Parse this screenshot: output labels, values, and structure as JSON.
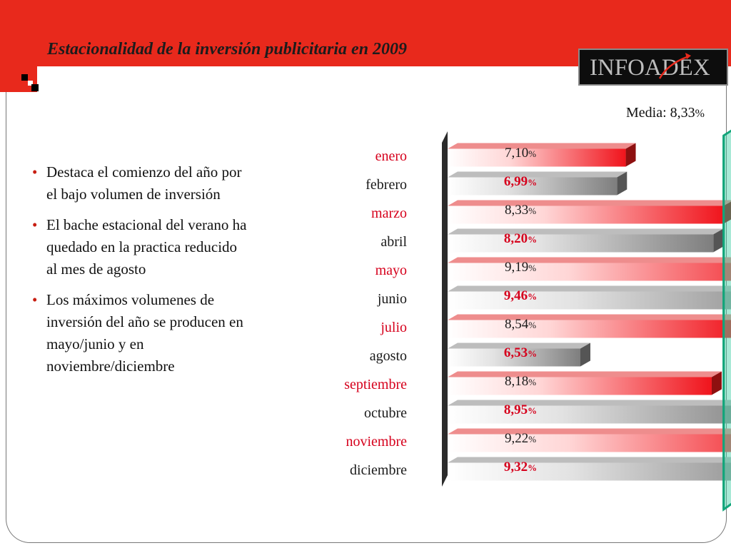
{
  "header": {
    "title": "Estacionalidad de la inversión publicitaria en 2009"
  },
  "logo": {
    "text": "INFOADEX",
    "icon": "infoadex-logo"
  },
  "bullets": [
    "Destaca el comienzo del año por el bajo volumen de inversión",
    "El bache estacional del verano ha quedado en la practica reducido al mes de agosto",
    "Los máximos volumenes de inversión del año se producen en mayo/junio y en noviembre/diciembre"
  ],
  "colors": {
    "brand_red": "#e8291c",
    "label_red": "#d6001c",
    "bar_red": "#f0141c",
    "bar_gray": "#8a8a8a",
    "mean_green": "#3fcfa3"
  },
  "chart_data": {
    "type": "bar",
    "orientation": "horizontal",
    "categories": [
      "enero",
      "febrero",
      "marzo",
      "abril",
      "mayo",
      "junio",
      "julio",
      "agosto",
      "septiembre",
      "octubre",
      "noviembre",
      "diciembre"
    ],
    "values": [
      7.1,
      6.99,
      8.33,
      8.2,
      9.19,
      9.46,
      8.54,
      6.53,
      8.18,
      8.95,
      9.22,
      9.32
    ],
    "value_labels": [
      "7,10",
      "6,99",
      "8,33",
      "8,20",
      "9,19",
      "9,46",
      "8,54",
      "6,53",
      "8,18",
      "8,95",
      "9,22",
      "9,32"
    ],
    "unit": "%",
    "bar_styles": [
      "red",
      "gray",
      "red",
      "gray",
      "red",
      "gray",
      "red",
      "gray",
      "red",
      "gray",
      "red",
      "gray"
    ],
    "mean": {
      "label": "Media: 8,33",
      "unit": "%",
      "value": 8.33
    }
  }
}
